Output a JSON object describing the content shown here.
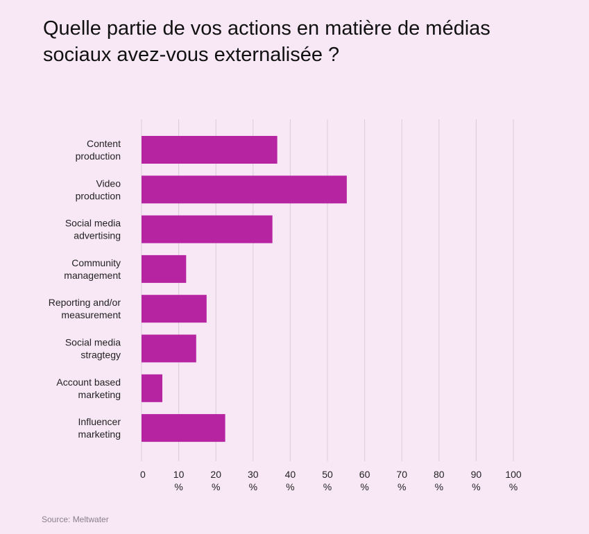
{
  "title": "Quelle partie de vos actions en matière de médias sociaux avez-vous externalisée ?",
  "source": "Source: Meltwater",
  "chart_data": {
    "type": "bar",
    "orientation": "horizontal",
    "title": "Quelle partie de vos actions en matière de médias sociaux avez-vous externalisée ?",
    "categories": [
      [
        "Content",
        "production"
      ],
      [
        "Video",
        "production"
      ],
      [
        "Social media",
        "advertising"
      ],
      [
        "Community",
        "management"
      ],
      [
        "Reporting and/or",
        "measurement"
      ],
      [
        "Social media",
        "stragtegy"
      ],
      [
        "Account based",
        "marketing"
      ],
      [
        "Influencer",
        "marketing"
      ]
    ],
    "values": [
      36.5,
      55.2,
      35.2,
      12.0,
      17.5,
      14.7,
      5.6,
      22.5
    ],
    "xlim": [
      0,
      100
    ],
    "xticks": [
      [
        "0"
      ],
      [
        "10",
        "%"
      ],
      [
        "20",
        "%"
      ],
      [
        "30",
        "%"
      ],
      [
        "40",
        "%"
      ],
      [
        "50",
        "%"
      ],
      [
        "60",
        "%"
      ],
      [
        "70",
        "%"
      ],
      [
        "80",
        "%"
      ],
      [
        "90",
        "%"
      ],
      [
        "100",
        "%"
      ]
    ],
    "tick_values": [
      0,
      10,
      20,
      30,
      40,
      50,
      60,
      70,
      80,
      90,
      100
    ],
    "grid": true,
    "bar_color": "#b624a2",
    "grid_color": "#d7cbd6"
  }
}
